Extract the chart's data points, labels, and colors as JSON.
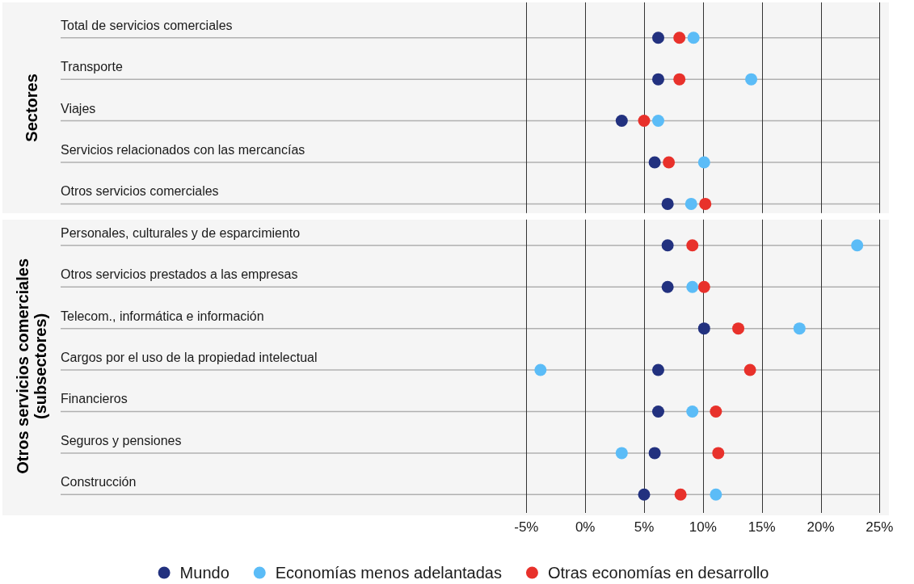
{
  "chart_data": {
    "type": "scatter",
    "orientation": "horizontal",
    "annotations": [
      "Sectores",
      "Otros servicios comerciales (subsectores)"
    ],
    "categories": [
      "Total de servicios comerciales",
      "Transporte",
      "Viajes",
      "Servicios relacionados con las mercancías",
      "Otros servicios comerciales",
      "Personales, culturales y de esparcimiento",
      "Otros servicios prestados a las empresas",
      "Telecom., informática e información",
      "Cargos por el uso de la propiedad intelectual",
      "Financieros",
      "Seguros y pensiones",
      "Construcción"
    ],
    "series": [
      {
        "name": "Mundo",
        "color": "#22317f",
        "values": [
          6.2,
          6.2,
          3.1,
          5.9,
          7.0,
          7.0,
          7.0,
          10.1,
          6.2,
          6.2,
          5.9,
          5.0
        ]
      },
      {
        "name": "Economías menos adelantadas",
        "color": "#5bbcf7",
        "values": [
          9.2,
          14.1,
          6.2,
          10.1,
          9.0,
          23.1,
          9.1,
          18.2,
          -3.8,
          9.1,
          3.1,
          11.1
        ]
      },
      {
        "name": "Otras economías en desarrollo",
        "color": "#e8312b",
        "values": [
          8.0,
          8.0,
          5.0,
          7.1,
          10.2,
          9.1,
          10.1,
          13.0,
          14.0,
          11.1,
          11.3,
          8.1
        ]
      }
    ],
    "xlim": [
      -49.2,
      25.8
    ],
    "xticks": [
      {
        "value": -5,
        "label": "-5%"
      },
      {
        "value": 0,
        "label": "0%"
      },
      {
        "value": 5,
        "label": "5%"
      },
      {
        "value": 10,
        "label": "10%"
      },
      {
        "value": 15,
        "label": "15%"
      },
      {
        "value": 20,
        "label": "20%"
      },
      {
        "value": 25,
        "label": "25%"
      }
    ],
    "grid": true,
    "marker": "circle",
    "legend": "bottom"
  }
}
